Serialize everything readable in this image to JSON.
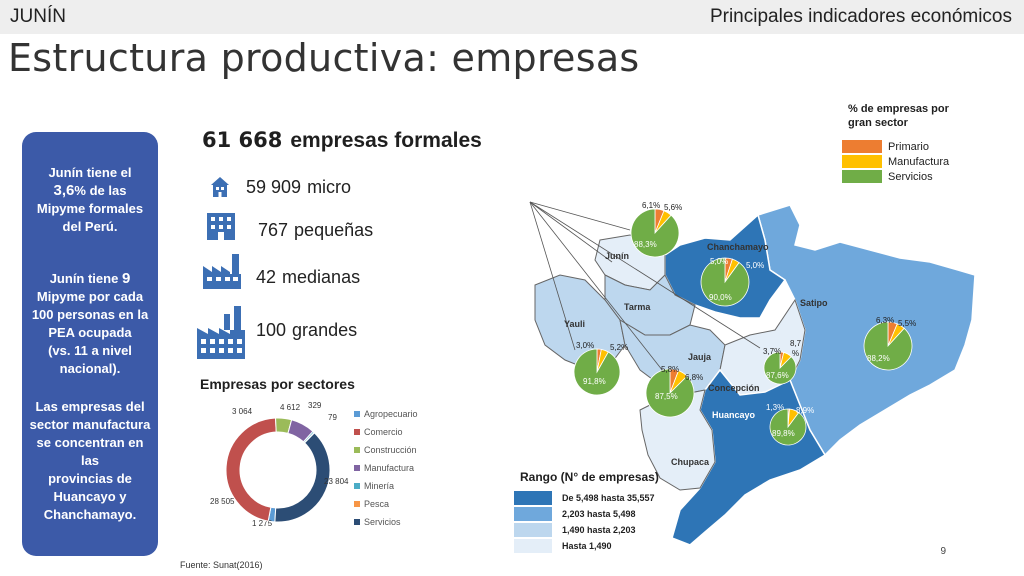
{
  "header": {
    "region": "JUNÍN",
    "section": "Principales indicadores económicos",
    "title": "Estructura productiva: empresas"
  },
  "left_panel": {
    "p1_a": "Junín tiene el",
    "p1_b": "3,6",
    "p1_c": "% de las",
    "p1_d": "Mipyme formales",
    "p1_e": "del Perú.",
    "p2_a": "Junín tiene",
    "p2_b": "9",
    "p2_c": "Mipyme por cada",
    "p2_d": "100 personas en la",
    "p2_e": "PEA ocupada",
    "p2_f": "(vs. 11 a nivel",
    "p2_g": "nacional).",
    "p3_a": "Las empresas del",
    "p3_b": "sector manufactura",
    "p3_c": "se concentran en las",
    "p3_d": "provincias de",
    "p3_e": "Huancayo y",
    "p3_f": "Chanchamayo."
  },
  "kpis": {
    "total_value": "61 668",
    "total_label": "empresas formales",
    "micro_value": "59 909",
    "micro_label": "micro",
    "small_value": "767",
    "small_label": "pequeñas",
    "medium_value": "42",
    "medium_label": "medianas",
    "large_value": "100",
    "large_label": "grandes"
  },
  "sectors": {
    "title": "Empresas por sectores",
    "items": [
      {
        "name": "Agropecuario",
        "value": 1275,
        "label": "1 275",
        "color": "#5b9bd5"
      },
      {
        "name": "Comercio",
        "value": 28505,
        "label": "28 505",
        "color": "#c0504d"
      },
      {
        "name": "Construcción",
        "value": 3064,
        "label": "3 064",
        "color": "#9bbb59"
      },
      {
        "name": "Manufactura",
        "value": 4612,
        "label": "4 612",
        "color": "#8064a2"
      },
      {
        "name": "Minería",
        "value": 329,
        "label": "329",
        "color": "#4bacc6"
      },
      {
        "name": "Pesca",
        "value": 79,
        "label": "79",
        "color": "#f79646"
      },
      {
        "name": "Servicios",
        "value": 23804,
        "label": "23 804",
        "color": "#2c4d75"
      }
    ]
  },
  "chart_data": {
    "type": "pie",
    "title": "Empresas por sectores",
    "categories": [
      "Agropecuario",
      "Comercio",
      "Construcción",
      "Manufactura",
      "Minería",
      "Pesca",
      "Servicios"
    ],
    "values": [
      1275,
      28505,
      3064,
      4612,
      329,
      79,
      23804
    ]
  },
  "map": {
    "legend_title_1": "% de empresas por",
    "legend_title_2": "gran sector",
    "legend_items": [
      {
        "name": "Primario",
        "color": "#ed7d31"
      },
      {
        "name": "Manufactura",
        "color": "#ffc000"
      },
      {
        "name": "Servicios",
        "color": "#70ad47"
      }
    ],
    "range_title": "Rango (N° de empresas)",
    "ranges": [
      {
        "label": "De 5,498 hasta 35,557",
        "color": "#2e75b6"
      },
      {
        "label": "2,203 hasta 5,498",
        "color": "#6fa8dc"
      },
      {
        "label": "1,490 hasta 2,203",
        "color": "#bdd7ee"
      },
      {
        "label": "Hasta 1,490",
        "color": "#e4eef8"
      }
    ],
    "provinces": {
      "junin": "Junín",
      "chanchamayo": "Chanchamayo",
      "tarma": "Tarma",
      "satipo": "Satipo",
      "yauli": "Yauli",
      "jauja": "Jauja",
      "concepcion": "Concepción",
      "huancayo": "Huancayo",
      "chupaca": "Chupaca"
    },
    "pies": {
      "junin": {
        "a": "6,1%",
        "b": "5,6%",
        "c": "88,3%",
        "values": [
          6.1,
          5.6,
          88.3
        ]
      },
      "chanchamayo": {
        "a": "5,0%",
        "b": "5,0%",
        "c": "90,0%",
        "values": [
          5.0,
          5.0,
          90.0
        ]
      },
      "satipo": {
        "a": "6,3%",
        "b": "5,5%",
        "c": "88,2%",
        "values": [
          6.3,
          5.5,
          88.2
        ]
      },
      "yauli": {
        "a": "3,0%",
        "b": "5,2%",
        "c": "91,8%",
        "values": [
          3.0,
          5.2,
          91.8
        ]
      },
      "tarma": {
        "a": "5,8%",
        "b": "6,8%",
        "c": "87,5%",
        "values": [
          5.8,
          6.8,
          87.5
        ]
      },
      "concepcion": {
        "a": "3,7%",
        "b": "8,7",
        "b2": "%",
        "c": "87,6%",
        "values": [
          3.7,
          8.7,
          87.6
        ]
      },
      "huancayo": {
        "a": "1,3%",
        "b": "8,9%",
        "c": "89,8%",
        "values": [
          1.3,
          8.9,
          89.8
        ]
      }
    }
  },
  "footer": {
    "source": "Fuente: Sunat(2016)",
    "page": "9"
  }
}
